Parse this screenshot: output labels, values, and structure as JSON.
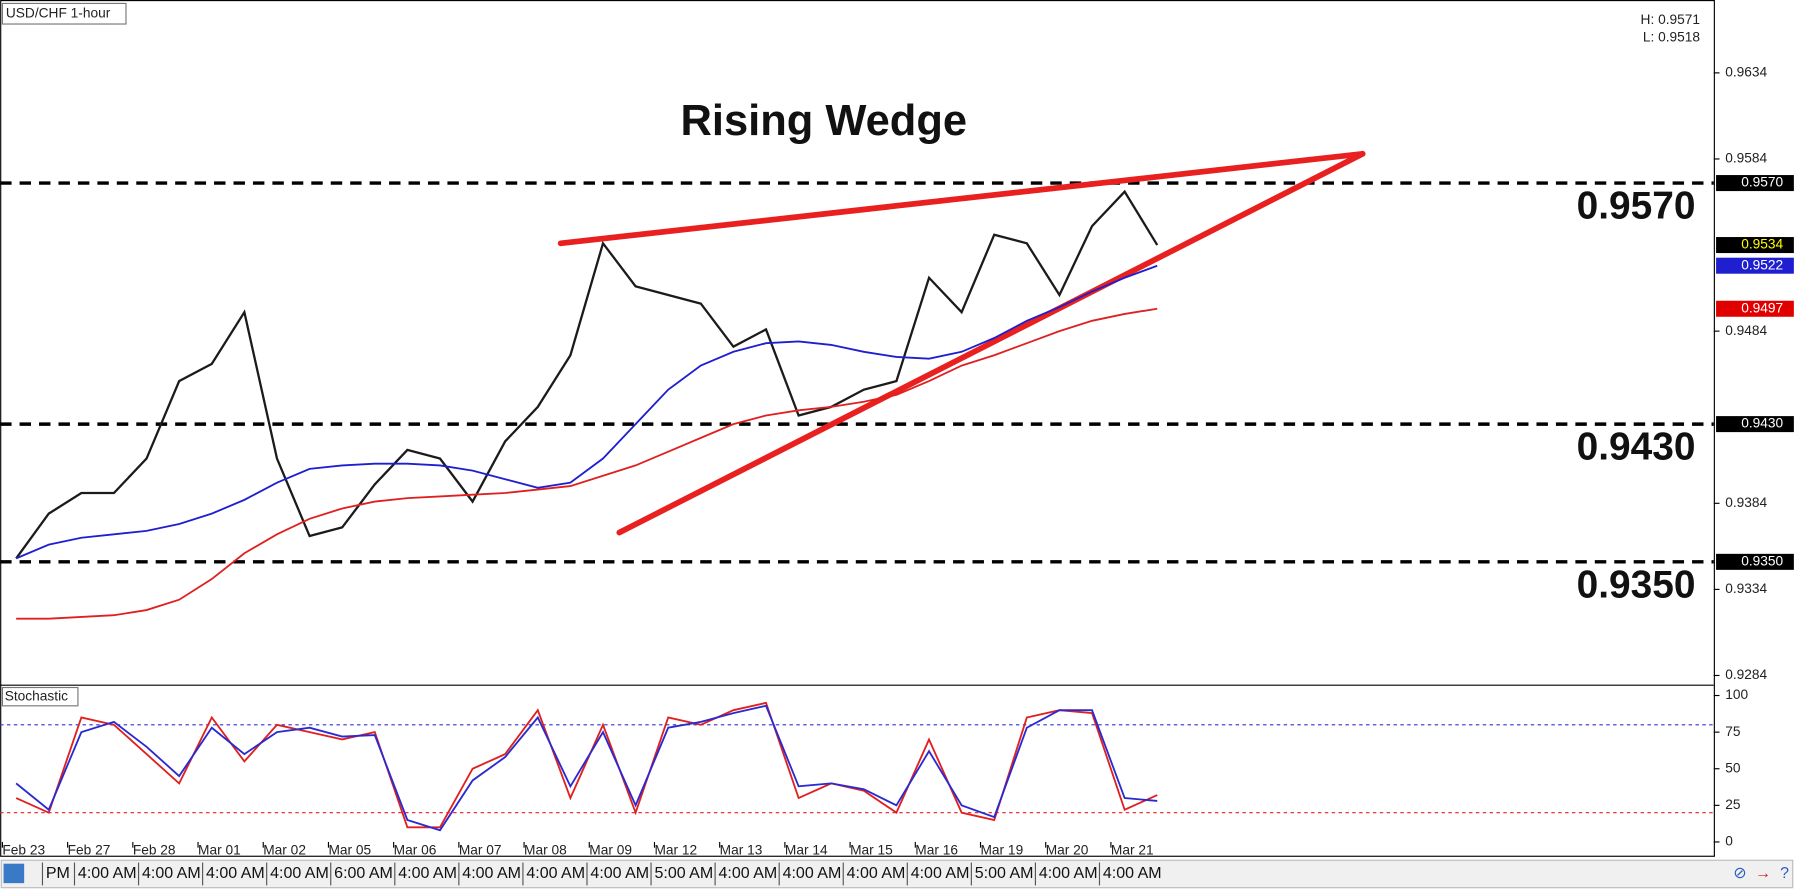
{
  "chart_data": [
    {
      "type": "line",
      "title": "Rising Wedge",
      "symbol": "USD/CHF 1-hour",
      "high_label": "H: 0.9571",
      "low_label": "L: 0.9518",
      "categories": [
        "Feb 23",
        null,
        "Feb 27",
        null,
        "Feb 28",
        null,
        "Mar 01",
        null,
        "Mar 02",
        null,
        "Mar 05",
        null,
        "Mar 06",
        null,
        "Mar 07",
        null,
        "Mar 08",
        null,
        "Mar 09",
        null,
        "Mar 12",
        null,
        "Mar 13",
        null,
        "Mar 14",
        null,
        "Mar 15",
        null,
        "Mar 16",
        null,
        "Mar 19",
        null,
        "Mar 20",
        null,
        "Mar 21",
        null
      ],
      "series": [
        {
          "color": "#1b1b1b",
          "values": [
            0.9352,
            0.9378,
            0.939,
            0.939,
            0.941,
            0.9455,
            0.9465,
            0.9495,
            0.941,
            0.9365,
            0.937,
            0.9395,
            0.9415,
            0.941,
            0.9385,
            0.942,
            0.944,
            0.947,
            0.9535,
            0.951,
            0.9505,
            0.95,
            0.9475,
            0.9485,
            0.9435,
            0.944,
            0.945,
            0.9455,
            0.9515,
            0.9495,
            0.954,
            0.9535,
            0.9505,
            0.9545,
            0.9565,
            0.9534
          ]
        },
        {
          "color": "#1f1fd0",
          "values": [
            0.9352,
            0.936,
            0.9364,
            0.9366,
            0.9368,
            0.9372,
            0.9378,
            0.9386,
            0.9396,
            0.9404,
            0.9406,
            0.9407,
            0.9407,
            0.9406,
            0.9403,
            0.9398,
            0.9393,
            0.9396,
            0.941,
            0.943,
            0.945,
            0.9464,
            0.9472,
            0.9477,
            0.9478,
            0.9476,
            0.9472,
            0.9469,
            0.9468,
            0.9472,
            0.948,
            0.949,
            0.9498,
            0.9507,
            0.9515,
            0.9522
          ]
        },
        {
          "color": "#e02020",
          "values": [
            0.9317,
            0.9317,
            0.9318,
            0.9319,
            0.9322,
            0.9328,
            0.934,
            0.9355,
            0.9366,
            0.9375,
            0.9381,
            0.9385,
            0.9387,
            0.9388,
            0.9389,
            0.939,
            0.9392,
            0.9394,
            0.94,
            0.9406,
            0.9414,
            0.9422,
            0.943,
            0.9435,
            0.9438,
            0.944,
            0.9443,
            0.9447,
            0.9455,
            0.9464,
            0.947,
            0.9477,
            0.9484,
            0.949,
            0.9494,
            0.9497
          ]
        }
      ],
      "ylim": [
        0.9279,
        0.9675
      ],
      "yticks": [
        0.9284,
        0.9334,
        0.9384,
        0.9484,
        0.9584,
        0.9634
      ],
      "levels": [
        {
          "value": 0.957,
          "label": "0.9570"
        },
        {
          "value": 0.943,
          "label": "0.9430"
        },
        {
          "value": 0.935,
          "label": "0.9350"
        }
      ],
      "price_markers": [
        {
          "value": 0.957,
          "label": "0.9570",
          "color": "#000000",
          "text_color": "#ffffff"
        },
        {
          "value": 0.9534,
          "color": "#000000",
          "text_color": "#ffff00"
        },
        {
          "value": 0.9522,
          "color": "#1f1fd0",
          "text_color": "#ffffff"
        },
        {
          "value": 0.9497,
          "color": "#e00000",
          "text_color": "#ffffff"
        },
        {
          "value": 0.943,
          "label": "0.9430",
          "color": "#000000",
          "text_color": "#ffffff"
        },
        {
          "value": 0.935,
          "label": "0.9350",
          "color": "#000000",
          "text_color": "#ffffff"
        }
      ],
      "trendlines": {
        "color": "#e8201f",
        "lines": [
          {
            "x": [
              16.7,
              41.3
            ],
            "y": [
              0.9535,
              0.9587
            ]
          },
          {
            "x": [
              18.5,
              41.3
            ],
            "y": [
              0.9367,
              0.9587
            ]
          }
        ]
      },
      "session_labels": [
        "PM",
        "4:00 AM",
        "4:00 AM",
        "4:00 AM",
        "4:00 AM",
        "6:00 AM",
        "4:00 AM",
        "4:00 AM",
        "4:00 AM",
        "4:00 AM",
        "5:00 AM",
        "4:00 AM",
        "4:00 AM",
        "4:00 AM",
        "4:00 AM",
        "5:00 AM",
        "4:00 AM",
        "4:00 AM"
      ]
    },
    {
      "type": "line",
      "title": "Stochastic",
      "series": [
        {
          "color": "#e02020",
          "values": [
            30,
            20,
            85,
            80,
            60,
            40,
            85,
            55,
            80,
            75,
            70,
            75,
            10,
            10,
            50,
            60,
            90,
            30,
            80,
            20,
            85,
            80,
            90,
            95,
            30,
            40,
            35,
            20,
            70,
            20,
            15,
            85,
            90,
            88,
            22,
            32
          ]
        },
        {
          "color": "#2a2ad0",
          "values": [
            40,
            22,
            75,
            82,
            65,
            45,
            78,
            60,
            75,
            78,
            72,
            73,
            15,
            8,
            42,
            58,
            85,
            38,
            75,
            25,
            78,
            82,
            88,
            93,
            38,
            40,
            36,
            25,
            62,
            25,
            17,
            78,
            90,
            90,
            30,
            28
          ]
        }
      ],
      "ylim": [
        0,
        100
      ],
      "yticks": [
        0,
        25,
        50,
        75,
        100
      ],
      "levels": [
        {
          "value": 80,
          "color": "#3030d0"
        },
        {
          "value": 20,
          "color": "#e02020"
        }
      ]
    }
  ]
}
